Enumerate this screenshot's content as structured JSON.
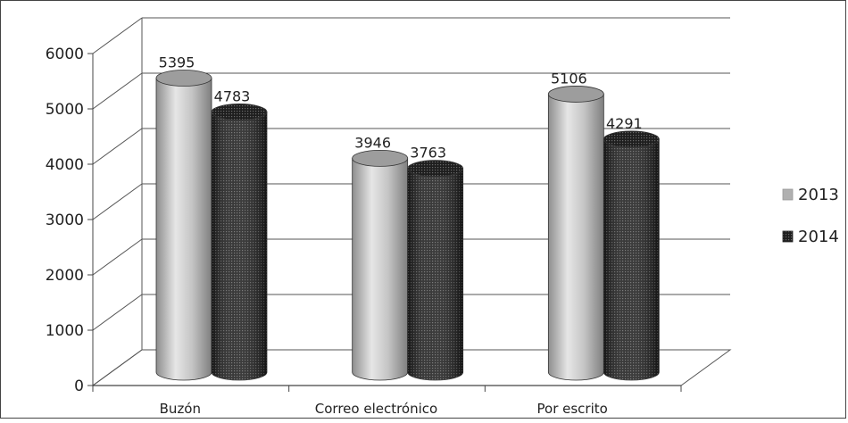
{
  "chart_data": {
    "type": "bar",
    "title": "",
    "xlabel": "",
    "ylabel": "",
    "categories": [
      "Buzón",
      "Correo electrónico",
      "Por escrito"
    ],
    "series": [
      {
        "name": "2013",
        "values": [
          5395,
          3946,
          5106
        ],
        "color": "#b9b9b9"
      },
      {
        "name": "2014",
        "values": [
          4783,
          3763,
          4291
        ],
        "color": "#2a2a2a"
      }
    ],
    "ylim": [
      0,
      6000
    ],
    "yticks": [
      "0",
      "1000",
      "2000",
      "3000",
      "4000",
      "5000",
      "6000"
    ],
    "grid": true,
    "legend_position": "right"
  }
}
